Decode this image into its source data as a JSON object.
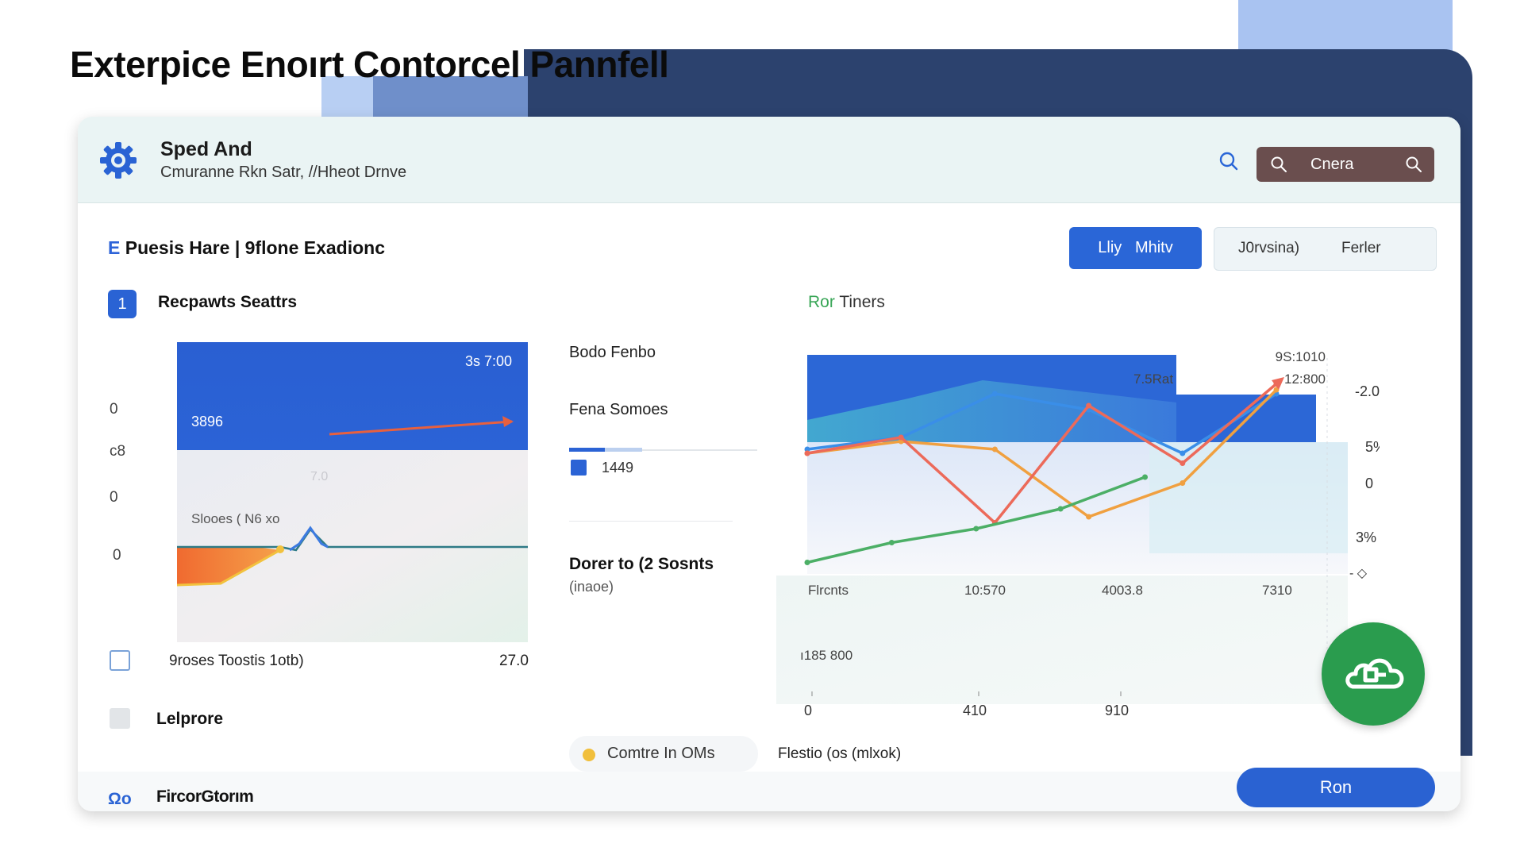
{
  "page_title": "Exterpice Enoırt Contorcel Pannfell",
  "header": {
    "app_name": "Sped And",
    "app_subtitle": "Cmuranne Rkn Satr, //Hheot Drnve",
    "search_label": "Cnera"
  },
  "toolbar": {
    "section_accent": "E",
    "section_title": "Puesis Hare | 9flone Exadionc",
    "primary_button": "Lliy   Mhitv",
    "segment_left": "J0rvsina)",
    "segment_right": "Ferler"
  },
  "left_panel": {
    "badge": "1",
    "title": "Recpawts Seattrs",
    "y_labels": [
      "0",
      "c8",
      "0",
      "0"
    ],
    "chart": {
      "top_value": "3s 7:00",
      "left_value": "3896",
      "faint_value": "7.0",
      "mid_label": "Slooes ( N6 xo"
    },
    "footer_label": "9roses Toostis 1otb)",
    "footer_value": "27.0",
    "secondary_label": "Lelprore"
  },
  "middle_panel": {
    "item1": "Bodo Fenbo",
    "item2": "Fena Somoes",
    "item3": "1449",
    "item4": "Dorer to (2 Sosnts",
    "item5": "(inaoe)",
    "pill_label": "Comtre In OMs"
  },
  "right_panel": {
    "title_accent": "Ror",
    "title": "Tiners",
    "caption": "Flestio (os (mlxok)",
    "chart_data": {
      "type": "line",
      "title": "Ror Tiners",
      "top_labels": [
        "7.5Rat",
        "9S:1010",
        "12:800"
      ],
      "right_labels": [
        "-2.0",
        "5%",
        "0",
        "3%",
        "- ◇"
      ],
      "x_labels_row1": [
        "Flrcnts",
        "10:570",
        "4003.8",
        "7310"
      ],
      "x_labels_row2": [
        "0",
        "410",
        "910"
      ],
      "floating_label": "ı185 800",
      "series": [
        {
          "name": "blue",
          "color": "#3a8ee8",
          "values": [
            0.62,
            0.68,
            0.9,
            0.82,
            0.6,
            0.9
          ]
        },
        {
          "name": "orange",
          "color": "#f0a040",
          "values": [
            0.6,
            0.66,
            0.62,
            0.28,
            0.45,
            0.92
          ]
        },
        {
          "name": "red",
          "color": "#ec6a5a",
          "values": [
            0.6,
            0.68,
            0.25,
            0.84,
            0.55,
            0.95
          ]
        },
        {
          "name": "green",
          "color": "#4caf66",
          "values": [
            0.05,
            0.15,
            0.22,
            0.32,
            0.48
          ]
        }
      ]
    }
  },
  "footer": {
    "icon_text": "Ωo",
    "label": "FircorGtorım",
    "button": "Ron"
  },
  "colors": {
    "navy": "#2c426e",
    "primary": "#2a66d7",
    "green": "#2a9c4e"
  }
}
